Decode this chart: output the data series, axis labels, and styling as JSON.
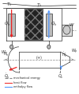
{
  "legend": [
    {
      "label": "mechanical energy",
      "color": "#888888",
      "lw": 0.8,
      "ls": "--"
    },
    {
      "label": "heat flow",
      "color": "#ee3333",
      "lw": 0.8,
      "ls": "-"
    },
    {
      "label": "enthalpy flow",
      "color": "#5599ff",
      "lw": 0.8,
      "ls": "-"
    }
  ],
  "red": "#ee2222",
  "blue": "#5599ff",
  "gray": "#888888",
  "dgray": "#333333",
  "lw": 0.5
}
